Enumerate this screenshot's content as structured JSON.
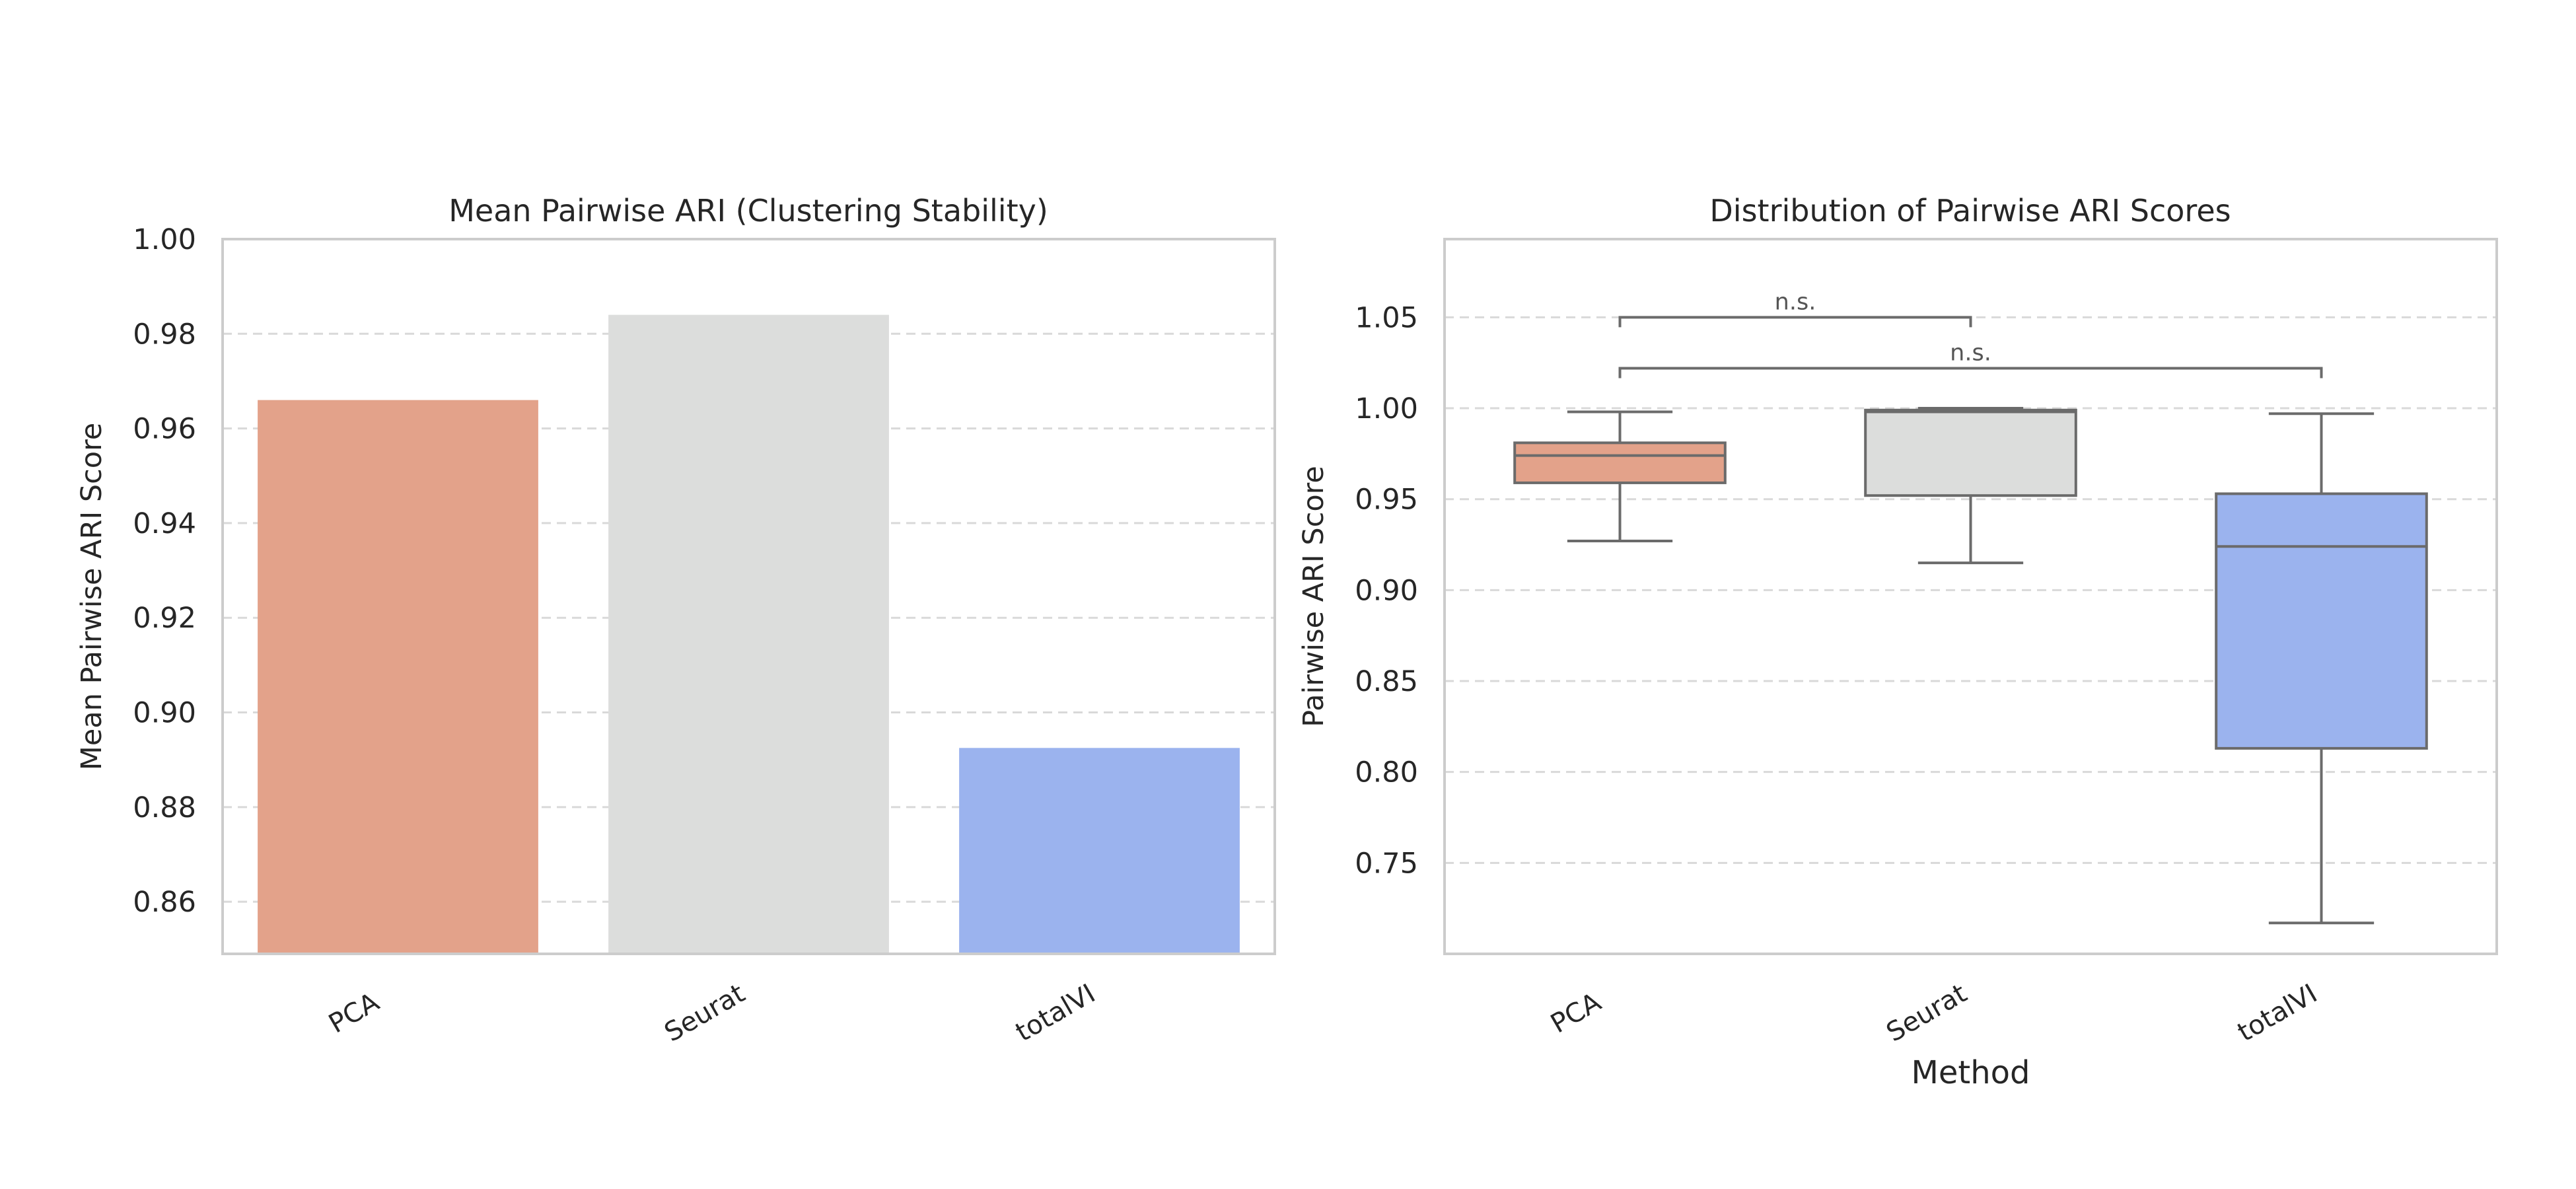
{
  "chart_data": [
    {
      "type": "bar",
      "title": "Mean Pairwise ARI (Clustering Stability)",
      "xlabel": "",
      "ylabel": "Mean Pairwise ARI Score",
      "categories": [
        "PCA",
        "Seurat",
        "totalVI"
      ],
      "values": [
        0.966,
        0.984,
        0.8925
      ],
      "ylim": [
        0.849,
        1.0
      ],
      "yticks": [
        "0.86",
        "0.88",
        "0.90",
        "0.92",
        "0.94",
        "0.96",
        "0.98",
        "1.00"
      ],
      "colors": [
        "#e3a28a",
        "#dcdddc",
        "#9bb3ee"
      ],
      "grid": "horizontal dashed"
    },
    {
      "type": "box",
      "title": "Distribution of Pairwise ARI Scores",
      "xlabel": "Method",
      "ylabel": "Pairwise ARI Score",
      "categories": [
        "PCA",
        "Seurat",
        "totalVI"
      ],
      "boxes": [
        {
          "whisker_low": 0.927,
          "q1": 0.959,
          "median": 0.974,
          "q3": 0.981,
          "whisker_high": 0.998
        },
        {
          "whisker_low": 0.915,
          "q1": 0.952,
          "median": 0.998,
          "q3": 0.999,
          "whisker_high": 1.0
        },
        {
          "whisker_low": 0.717,
          "q1": 0.813,
          "median": 0.924,
          "q3": 0.953,
          "whisker_high": 0.997
        }
      ],
      "ylim": [
        0.7,
        1.093
      ],
      "yticks": [
        "0.75",
        "0.80",
        "0.85",
        "0.90",
        "0.95",
        "1.00",
        "1.05"
      ],
      "colors": [
        "#e3a28a",
        "#dcdddc",
        "#9bb3ee"
      ],
      "grid": "horizontal dashed",
      "annotations": [
        {
          "from": "PCA",
          "to": "Seurat",
          "y": 1.05,
          "text": "n.s."
        },
        {
          "from": "PCA",
          "to": "totalVI",
          "y": 1.022,
          "text": "n.s."
        }
      ]
    }
  ]
}
